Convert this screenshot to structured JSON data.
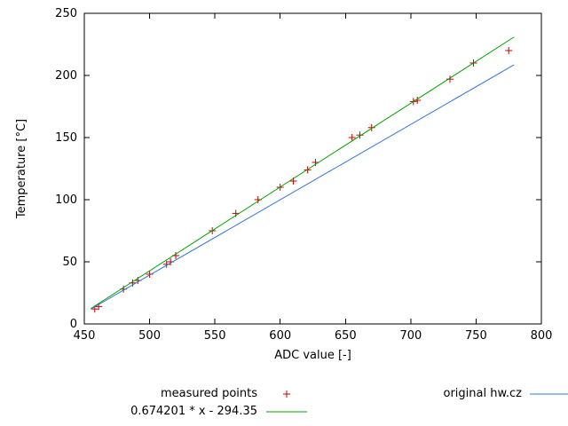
{
  "chart_data": {
    "type": "scatter",
    "title": "",
    "xlabel": "ADC value [-]",
    "ylabel": "Temperature [°C]",
    "xlim": [
      450,
      800
    ],
    "ylim": [
      0,
      250
    ],
    "xticks": [
      450,
      500,
      550,
      600,
      650,
      700,
      750,
      800
    ],
    "yticks": [
      0,
      50,
      100,
      150,
      200,
      250
    ],
    "grid": false,
    "legend_position": "below-plot",
    "series": [
      {
        "name": "measured points",
        "kind": "points",
        "marker": "plus",
        "color": "#cc0000",
        "points": [
          [
            458,
            12
          ],
          [
            461,
            14
          ],
          [
            480,
            28
          ],
          [
            487,
            33
          ],
          [
            491,
            35
          ],
          [
            500,
            40
          ],
          [
            513,
            48
          ],
          [
            516,
            50
          ],
          [
            520,
            55
          ],
          [
            548,
            75
          ],
          [
            566,
            89
          ],
          [
            583,
            100
          ],
          [
            600,
            110
          ],
          [
            610,
            115
          ],
          [
            621,
            124
          ],
          [
            627,
            130
          ],
          [
            655,
            150
          ],
          [
            661,
            152
          ],
          [
            670,
            158
          ],
          [
            702,
            179
          ],
          [
            705,
            180
          ],
          [
            730,
            197
          ],
          [
            748,
            210
          ],
          [
            775,
            220
          ]
        ]
      },
      {
        "name": "0.674201 * x - 294.35",
        "kind": "line",
        "color": "#00a000",
        "slope": 0.674201,
        "intercept": -294.35,
        "points": [
          [
            455,
            12.4
          ],
          [
            779,
            230.9
          ]
        ]
      },
      {
        "name": "original hw.cz",
        "kind": "line",
        "color": "#3575d3",
        "points": [
          [
            455,
            12.0
          ],
          [
            779,
            208.5
          ]
        ]
      }
    ]
  }
}
